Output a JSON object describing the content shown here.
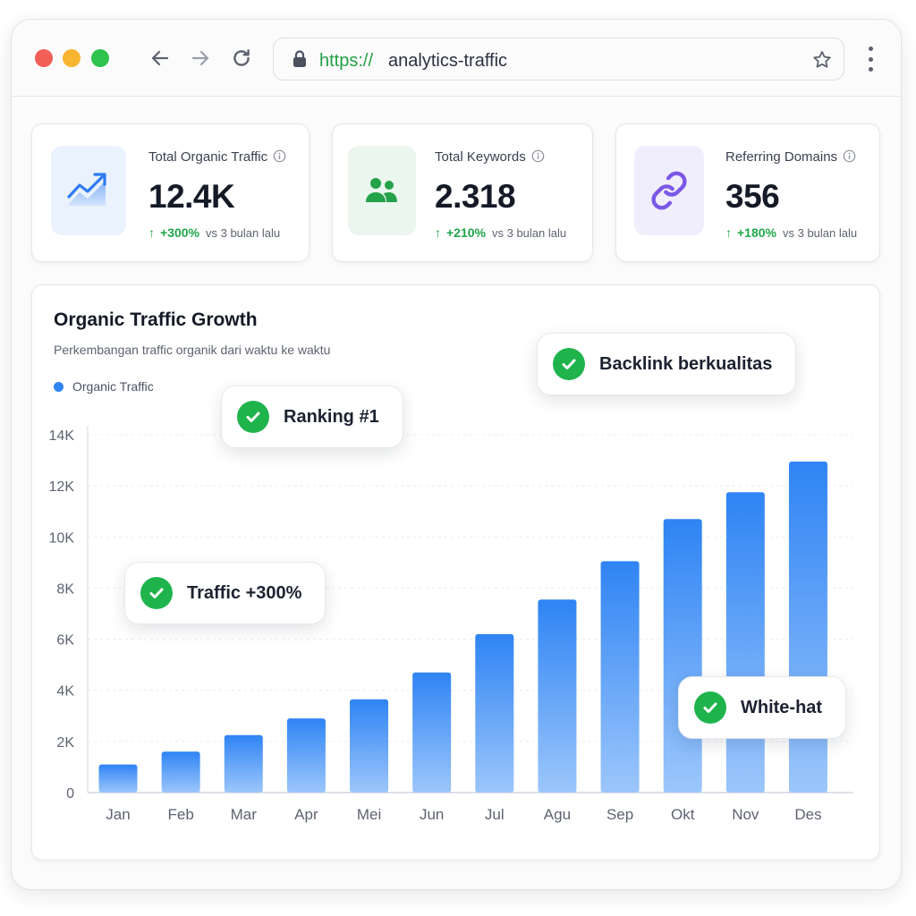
{
  "browser": {
    "url_scheme": "https://",
    "url_host": "analytics-traffic"
  },
  "stats": [
    {
      "label": "Total Organic Traffic",
      "value": "12.4K",
      "change": "+300%",
      "comparison": "vs 3 bulan lalu",
      "icon": "trending-up-icon",
      "icon_bg": "#eaf2fd",
      "icon_color": "#2f7cf0"
    },
    {
      "label": "Total Keywords",
      "value": "2.318",
      "change": "+210%",
      "comparison": "vs 3 bulan lalu",
      "icon": "users-icon",
      "icon_bg": "#eaf6ee",
      "icon_color": "#24a24a"
    },
    {
      "label": "Referring Domains",
      "value": "356",
      "change": "+180%",
      "comparison": "vs 3 bulan lalu",
      "icon": "link-icon",
      "icon_bg": "#f0eefc",
      "icon_color": "#7b58e6"
    }
  ],
  "chart": {
    "title": "Organic Traffic Growth",
    "subtitle": "Perkembangan traffic organik dari waktu ke waktu",
    "legend_label": "Organic Traffic",
    "bar_color": "#2f84f4"
  },
  "badges": {
    "ranking": "Ranking #1",
    "backlink": "Backlink berkualitas",
    "traffic": "Traffic +300%",
    "whitehat": "White-hat"
  },
  "colors": {
    "positive": "#1fa84a",
    "check": "#1fb34c",
    "url_scheme": "#22a044"
  },
  "chart_data": {
    "type": "bar",
    "title": "Organic Traffic Growth",
    "subtitle": "Perkembangan traffic organik dari waktu ke waktu",
    "categories": [
      "Jan",
      "Feb",
      "Mar",
      "Apr",
      "Mei",
      "Jun",
      "Jul",
      "Agu",
      "Sep",
      "Okt",
      "Nov",
      "Des"
    ],
    "series": [
      {
        "name": "Organic Traffic",
        "values": [
          1100,
          1600,
          2250,
          2900,
          3650,
          4700,
          6200,
          7550,
          9050,
          10700,
          11750,
          12950
        ]
      }
    ],
    "ylim": [
      0,
      14000
    ],
    "y_ticks": [
      0,
      2000,
      4000,
      6000,
      8000,
      10000,
      12000,
      14000
    ],
    "y_tick_labels": [
      "0",
      "2K",
      "4K",
      "6K",
      "8K",
      "10K",
      "12K",
      "14K"
    ],
    "grid": true,
    "legend_position": "top-left"
  }
}
